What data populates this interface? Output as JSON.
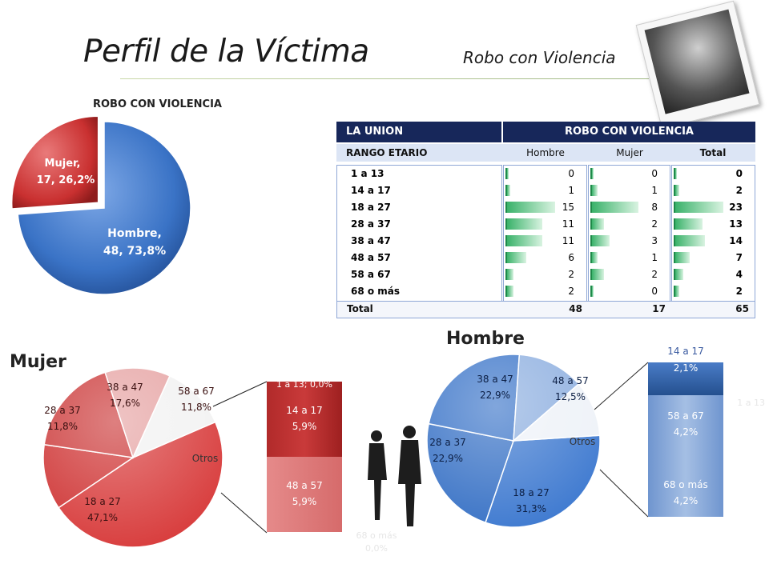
{
  "header": {
    "title": "Perfil de la Víctima",
    "subtitle": "Robo con Violencia"
  },
  "colors": {
    "hombre": "#3a73c6",
    "mujer": "#d23b3b",
    "table_header": "#17275a",
    "bar_green": "#3ab26a"
  },
  "chart_data": [
    {
      "type": "pie",
      "title": "ROBO CON VIOLENCIA",
      "categories": [
        "Hombre",
        "Mujer"
      ],
      "values": [
        48,
        17
      ],
      "labels": [
        "Hombre,\n48, 73,8%",
        "Mujer,\n17, 26,2%"
      ],
      "label_lines": [
        [
          "Hombre,",
          "48, 73,8%"
        ],
        [
          "Mujer,",
          "17, 26,2%"
        ]
      ]
    },
    {
      "type": "table",
      "title": "ROBO CON VIOLENCIA",
      "corner": "LA UNION",
      "row_header": "RANGO ETARIO",
      "columns": [
        "Hombre",
        "Mujer",
        "Total"
      ],
      "rows": [
        {
          "label": "1 a 13",
          "values": [
            0,
            0,
            0
          ]
        },
        {
          "label": "14 a 17",
          "values": [
            1,
            1,
            2
          ]
        },
        {
          "label": "18 a 27",
          "values": [
            15,
            8,
            23
          ]
        },
        {
          "label": "28 a 37",
          "values": [
            11,
            2,
            13
          ]
        },
        {
          "label": "38 a 47",
          "values": [
            11,
            3,
            14
          ]
        },
        {
          "label": "48 a 57",
          "values": [
            6,
            1,
            7
          ]
        },
        {
          "label": "58 a 67",
          "values": [
            2,
            2,
            4
          ]
        },
        {
          "label": "68 o más",
          "values": [
            2,
            0,
            2
          ]
        }
      ],
      "total": {
        "label": "Total",
        "values": [
          48,
          17,
          65
        ]
      }
    },
    {
      "type": "pie",
      "title": "Mujer",
      "slices": [
        {
          "label": "18 a 27",
          "pct": "47,1%",
          "value": 8
        },
        {
          "label": "28 a 37",
          "pct": "11,8%",
          "value": 2
        },
        {
          "label": "38 a 47",
          "pct": "17,6%",
          "value": 3
        },
        {
          "label": "58 a 67",
          "pct": "11,8%",
          "value": 2
        },
        {
          "label": "Otros",
          "pct": "",
          "value": 2
        }
      ],
      "otros_breakdown": [
        {
          "label": "1 a 13; 0,0%",
          "value": 0
        },
        {
          "label": "14 a 17",
          "pct": "5,9%",
          "value": 1
        },
        {
          "label": "48 a 57",
          "pct": "5,9%",
          "value": 1
        }
      ],
      "hidden_label": "68 o más",
      "hidden_pct": "0,0%"
    },
    {
      "type": "pie",
      "title": "Hombre",
      "slices": [
        {
          "label": "18 a 27",
          "pct": "31,3%",
          "value": 15
        },
        {
          "label": "28 a 37",
          "pct": "22,9%",
          "value": 11
        },
        {
          "label": "38 a 47",
          "pct": "22,9%",
          "value": 11
        },
        {
          "label": "48 a 57",
          "pct": "12,5%",
          "value": 6
        },
        {
          "label": "Otros",
          "pct": "",
          "value": 5
        }
      ],
      "otros_breakdown": [
        {
          "label": "14 a 17",
          "pct": "2,1%",
          "value": 1
        },
        {
          "label": "58 a 67",
          "pct": "4,2%",
          "value": 2
        },
        {
          "label": "68 o más",
          "pct": "4,2%",
          "value": 2
        }
      ],
      "hidden_label": "1 a 13"
    }
  ]
}
